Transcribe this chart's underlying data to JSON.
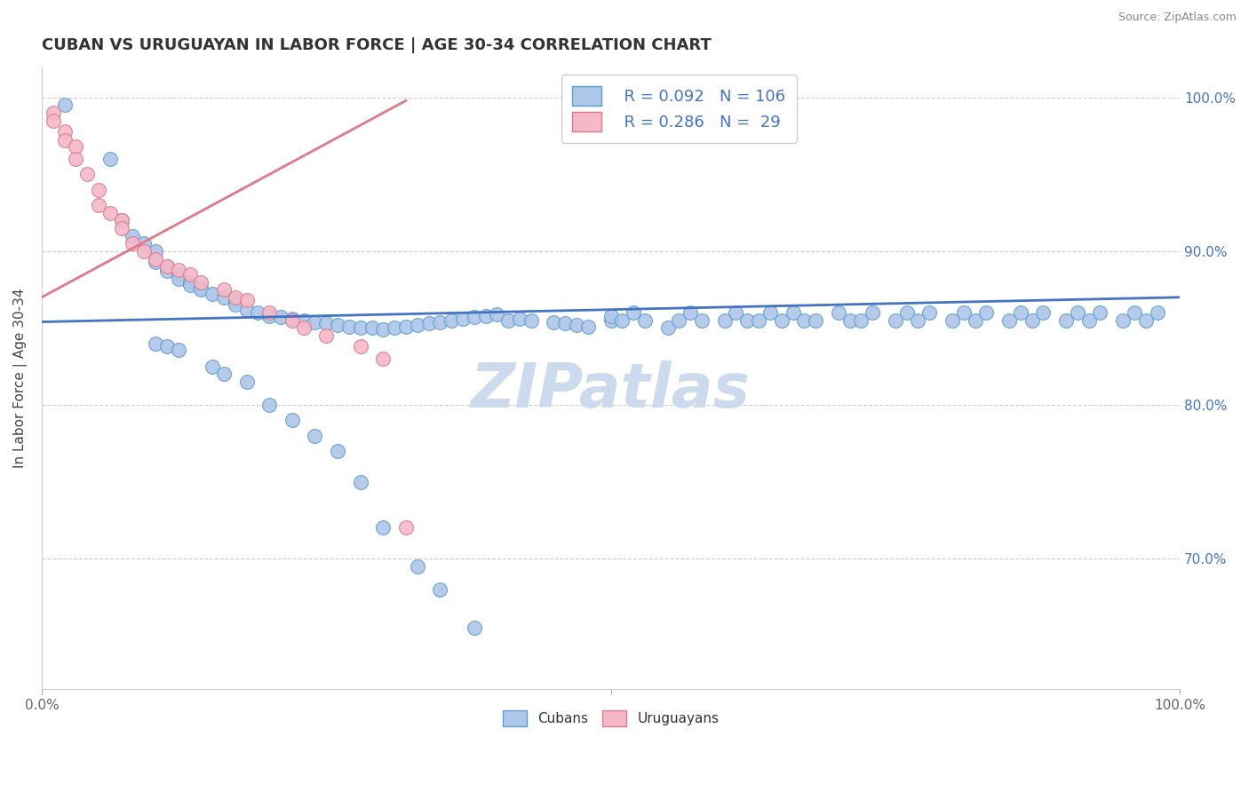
{
  "title": "CUBAN VS URUGUAYAN IN LABOR FORCE | AGE 30-34 CORRELATION CHART",
  "source_text": "Source: ZipAtlas.com",
  "ylabel": "In Labor Force | Age 30-34",
  "xlim": [
    0,
    1
  ],
  "ylim": [
    0.615,
    1.02
  ],
  "cuban_color": "#aec6e8",
  "cuban_edge_color": "#5a9fd4",
  "uruguayan_color": "#f4b8c8",
  "uruguayan_edge_color": "#e07888",
  "cuban_line_color": "#4472c4",
  "uruguayan_line_color": "#e07888",
  "blue_label_color": "#4472c4",
  "watermark_color": "#ccdaed",
  "grid_color": "#cccccc",
  "title_color": "#333333",
  "legend_r_cuban": "R = 0.092",
  "legend_n_cuban": "N = 106",
  "legend_r_uruguayan": "R = 0.286",
  "legend_n_uruguayan": "N =  29",
  "cuban_trend_x0": 0.0,
  "cuban_trend_x1": 1.0,
  "cuban_trend_y0": 0.854,
  "cuban_trend_y1": 0.87,
  "uruguayan_trend_x0": 0.0,
  "uruguayan_trend_x1": 0.32,
  "uruguayan_trend_y0": 0.87,
  "uruguayan_trend_y1": 0.998,
  "cuban_x": [
    0.02,
    0.06,
    0.07,
    0.08,
    0.09,
    0.1,
    0.1,
    0.11,
    0.11,
    0.12,
    0.12,
    0.13,
    0.13,
    0.14,
    0.14,
    0.15,
    0.16,
    0.17,
    0.17,
    0.18,
    0.19,
    0.2,
    0.21,
    0.22,
    0.23,
    0.24,
    0.25,
    0.26,
    0.27,
    0.28,
    0.29,
    0.3,
    0.31,
    0.32,
    0.33,
    0.34,
    0.35,
    0.36,
    0.37,
    0.38,
    0.39,
    0.4,
    0.41,
    0.42,
    0.43,
    0.45,
    0.46,
    0.47,
    0.48,
    0.5,
    0.5,
    0.51,
    0.52,
    0.53,
    0.55,
    0.56,
    0.57,
    0.58,
    0.6,
    0.61,
    0.62,
    0.63,
    0.64,
    0.65,
    0.66,
    0.67,
    0.68,
    0.7,
    0.71,
    0.72,
    0.73,
    0.75,
    0.76,
    0.77,
    0.78,
    0.8,
    0.81,
    0.82,
    0.83,
    0.85,
    0.86,
    0.87,
    0.88,
    0.9,
    0.91,
    0.92,
    0.93,
    0.95,
    0.96,
    0.97,
    0.98,
    0.1,
    0.11,
    0.12,
    0.15,
    0.16,
    0.18,
    0.2,
    0.22,
    0.24,
    0.26,
    0.28,
    0.3,
    0.33,
    0.35,
    0.38
  ],
  "cuban_y": [
    0.995,
    0.96,
    0.92,
    0.91,
    0.905,
    0.9,
    0.893,
    0.89,
    0.887,
    0.885,
    0.882,
    0.88,
    0.878,
    0.876,
    0.875,
    0.872,
    0.87,
    0.868,
    0.865,
    0.862,
    0.86,
    0.858,
    0.857,
    0.856,
    0.855,
    0.854,
    0.853,
    0.852,
    0.851,
    0.85,
    0.85,
    0.849,
    0.85,
    0.851,
    0.852,
    0.853,
    0.854,
    0.855,
    0.856,
    0.857,
    0.858,
    0.859,
    0.855,
    0.856,
    0.855,
    0.854,
    0.853,
    0.852,
    0.851,
    0.855,
    0.858,
    0.855,
    0.86,
    0.855,
    0.85,
    0.855,
    0.86,
    0.855,
    0.855,
    0.86,
    0.855,
    0.855,
    0.86,
    0.855,
    0.86,
    0.855,
    0.855,
    0.86,
    0.855,
    0.855,
    0.86,
    0.855,
    0.86,
    0.855,
    0.86,
    0.855,
    0.86,
    0.855,
    0.86,
    0.855,
    0.86,
    0.855,
    0.86,
    0.855,
    0.86,
    0.855,
    0.86,
    0.855,
    0.86,
    0.855,
    0.86,
    0.84,
    0.838,
    0.836,
    0.825,
    0.82,
    0.815,
    0.8,
    0.79,
    0.78,
    0.77,
    0.75,
    0.72,
    0.695,
    0.68,
    0.655
  ],
  "uruguayan_x": [
    0.01,
    0.01,
    0.02,
    0.02,
    0.03,
    0.03,
    0.04,
    0.05,
    0.05,
    0.06,
    0.07,
    0.07,
    0.08,
    0.09,
    0.1,
    0.11,
    0.12,
    0.13,
    0.14,
    0.16,
    0.17,
    0.18,
    0.2,
    0.22,
    0.23,
    0.25,
    0.28,
    0.3,
    0.32
  ],
  "uruguayan_y": [
    0.99,
    0.985,
    0.978,
    0.972,
    0.968,
    0.96,
    0.95,
    0.94,
    0.93,
    0.925,
    0.92,
    0.915,
    0.905,
    0.9,
    0.895,
    0.89,
    0.888,
    0.885,
    0.88,
    0.875,
    0.87,
    0.868,
    0.86,
    0.855,
    0.85,
    0.845,
    0.838,
    0.83,
    0.72
  ]
}
